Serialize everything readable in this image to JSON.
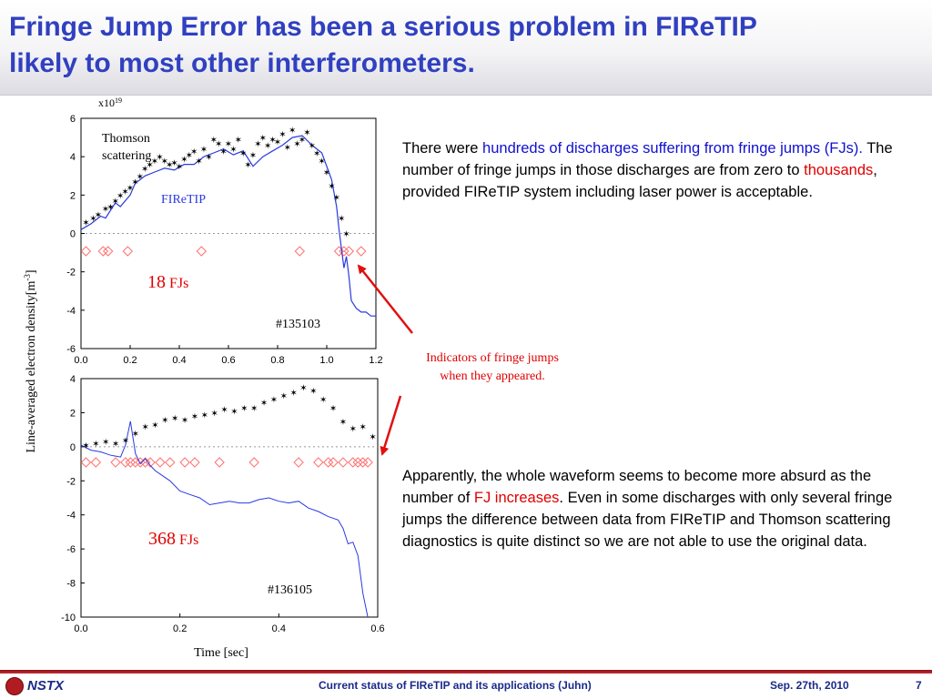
{
  "title": {
    "line1": "Fringe Jump Error has been a serious problem in FIReTIP",
    "line2": "likely to most other interferometers."
  },
  "colors": {
    "title": "#3040c0",
    "firetip": "#2a3ae0",
    "thomson": "#000000",
    "fj_marker": "#ff7070",
    "annotation": "#e00000",
    "footer_bar": "#a01820"
  },
  "shared_ylabel": {
    "text": "Line-averaged electron density[m",
    "sup": "-3",
    "end": "]"
  },
  "shared_xlabel": "Time [sec]",
  "annotation": {
    "line1": "Indicators of fringe jumps",
    "line2": "when they appeared."
  },
  "chart_data": [
    {
      "type": "line",
      "multiplier": {
        "base": "x10",
        "exp": "19"
      },
      "xlim": [
        0.0,
        1.2
      ],
      "ylim": [
        -6,
        6
      ],
      "xticks": [
        "0.0",
        "0.2",
        "0.4",
        "0.6",
        "0.8",
        "1.0",
        "1.2"
      ],
      "yticks": [
        "6",
        "4",
        "2",
        "0",
        "-2",
        "-4",
        "-6"
      ],
      "legend_labels": {
        "thomson_line1": "Thomson",
        "thomson_line2": "scattering",
        "firetip": "FIReTIP"
      },
      "fj_count": {
        "num": "18",
        "unit": "FJs"
      },
      "shot": "#135103",
      "series": [
        {
          "name": "Thomson scattering",
          "x": [
            0.02,
            0.05,
            0.07,
            0.1,
            0.12,
            0.14,
            0.16,
            0.18,
            0.2,
            0.22,
            0.24,
            0.26,
            0.28,
            0.3,
            0.32,
            0.34,
            0.36,
            0.38,
            0.4,
            0.42,
            0.44,
            0.46,
            0.48,
            0.5,
            0.52,
            0.54,
            0.56,
            0.58,
            0.6,
            0.62,
            0.64,
            0.66,
            0.68,
            0.7,
            0.72,
            0.74,
            0.76,
            0.78,
            0.8,
            0.82,
            0.84,
            0.86,
            0.88,
            0.9,
            0.92,
            0.94,
            0.96,
            0.98,
            1.0,
            1.02,
            1.04,
            1.06,
            1.08
          ],
          "y": [
            0.6,
            0.8,
            1.0,
            1.3,
            1.4,
            1.7,
            2.0,
            2.2,
            2.4,
            2.7,
            3.0,
            3.4,
            3.6,
            3.8,
            4.0,
            3.8,
            3.6,
            3.7,
            3.5,
            3.9,
            4.1,
            4.3,
            3.8,
            4.4,
            4.0,
            4.9,
            4.7,
            4.3,
            4.7,
            4.4,
            4.9,
            4.2,
            3.6,
            4.1,
            4.7,
            5.0,
            4.6,
            4.9,
            4.8,
            5.2,
            4.5,
            5.4,
            4.7,
            4.9,
            5.3,
            4.6,
            4.2,
            3.8,
            3.2,
            2.5,
            1.9,
            0.8,
            0.0
          ]
        },
        {
          "name": "FIReTIP",
          "x": [
            0.0,
            0.04,
            0.08,
            0.1,
            0.14,
            0.16,
            0.2,
            0.22,
            0.26,
            0.3,
            0.34,
            0.38,
            0.42,
            0.46,
            0.5,
            0.54,
            0.58,
            0.62,
            0.66,
            0.7,
            0.74,
            0.78,
            0.82,
            0.86,
            0.9,
            0.94,
            0.98,
            1.02,
            1.04,
            1.05,
            1.06,
            1.07,
            1.08,
            1.09,
            1.1,
            1.12,
            1.14,
            1.16,
            1.18,
            1.2
          ],
          "y": [
            0.2,
            0.5,
            0.9,
            0.8,
            1.6,
            1.4,
            2.0,
            2.6,
            3.0,
            3.2,
            3.4,
            3.3,
            3.6,
            3.6,
            4.0,
            4.2,
            4.4,
            4.1,
            4.3,
            3.5,
            4.0,
            4.3,
            4.6,
            5.0,
            5.1,
            4.6,
            4.2,
            2.8,
            1.4,
            0.2,
            -0.8,
            -1.8,
            -1.2,
            -2.2,
            -3.5,
            -3.9,
            -4.1,
            -4.1,
            -4.3,
            -4.3
          ]
        }
      ],
      "fringe_jumps_x": [
        0.02,
        0.09,
        0.11,
        0.19,
        0.49,
        0.89,
        1.05,
        1.07,
        1.09,
        1.14
      ]
    },
    {
      "type": "line",
      "xlim": [
        0.0,
        0.6
      ],
      "ylim": [
        -10,
        4
      ],
      "xticks": [
        "0.0",
        "0.2",
        "0.4",
        "0.6"
      ],
      "yticks": [
        "4",
        "2",
        "0",
        "-2",
        "-4",
        "-6",
        "-8",
        "-10"
      ],
      "fj_count": {
        "num": "368",
        "unit": "FJs"
      },
      "shot": "#136105",
      "series": [
        {
          "name": "Thomson scattering",
          "x": [
            0.01,
            0.03,
            0.05,
            0.07,
            0.09,
            0.11,
            0.13,
            0.15,
            0.17,
            0.19,
            0.21,
            0.23,
            0.25,
            0.27,
            0.29,
            0.31,
            0.33,
            0.35,
            0.37,
            0.39,
            0.41,
            0.43,
            0.45,
            0.47,
            0.49,
            0.51,
            0.53,
            0.55,
            0.57,
            0.59
          ],
          "y": [
            0.1,
            0.2,
            0.3,
            0.2,
            0.4,
            0.8,
            1.2,
            1.3,
            1.6,
            1.7,
            1.6,
            1.8,
            1.9,
            2.0,
            2.2,
            2.1,
            2.3,
            2.3,
            2.6,
            2.8,
            3.0,
            3.2,
            3.5,
            3.3,
            2.8,
            2.3,
            1.5,
            1.1,
            1.2,
            0.6
          ]
        },
        {
          "name": "FIReTIP",
          "x": [
            0.0,
            0.02,
            0.04,
            0.06,
            0.08,
            0.09,
            0.1,
            0.11,
            0.12,
            0.13,
            0.14,
            0.15,
            0.16,
            0.18,
            0.2,
            0.22,
            0.24,
            0.26,
            0.28,
            0.3,
            0.32,
            0.34,
            0.36,
            0.38,
            0.4,
            0.42,
            0.44,
            0.46,
            0.48,
            0.5,
            0.52,
            0.53,
            0.54,
            0.55,
            0.56,
            0.57,
            0.58
          ],
          "y": [
            0.1,
            -0.2,
            -0.3,
            -0.5,
            -0.6,
            0.1,
            1.5,
            -0.4,
            -1.0,
            -0.7,
            -1.1,
            -1.4,
            -1.6,
            -2.0,
            -2.6,
            -2.8,
            -3.0,
            -3.4,
            -3.3,
            -3.2,
            -3.3,
            -3.3,
            -3.1,
            -3.0,
            -3.2,
            -3.3,
            -3.2,
            -3.6,
            -3.8,
            -4.1,
            -4.3,
            -4.8,
            -5.7,
            -5.6,
            -6.4,
            -8.6,
            -10.0
          ]
        }
      ],
      "fringe_jumps_x": [
        0.01,
        0.03,
        0.07,
        0.09,
        0.1,
        0.11,
        0.12,
        0.13,
        0.14,
        0.16,
        0.18,
        0.21,
        0.23,
        0.28,
        0.35,
        0.44,
        0.48,
        0.5,
        0.51,
        0.53,
        0.55,
        0.56,
        0.57,
        0.58
      ]
    }
  ],
  "text_block_1": {
    "p1": "There were ",
    "h1": "hundreds of discharges suffering from fringe jumps (FJs).",
    "p2": " The number of fringe jumps in those discharges are from zero to ",
    "h2": "thousands",
    "p3": ", provided FIReTIP system including laser power is acceptable."
  },
  "text_block_2": {
    "p1": "Apparently, the whole waveform seems to become more absurd as the number of ",
    "h1": "FJ increases",
    "p2": ". Even in some discharges with only several fringe jumps the difference between data from FIReTIP and Thomson scattering diagnostics is quite distinct so we are not able to use the original data."
  },
  "footer": {
    "logo": "NSTX",
    "center": "Current status of FIReTIP and its applications (Juhn)",
    "date": "Sep. 27th, 2010",
    "page": "7"
  }
}
